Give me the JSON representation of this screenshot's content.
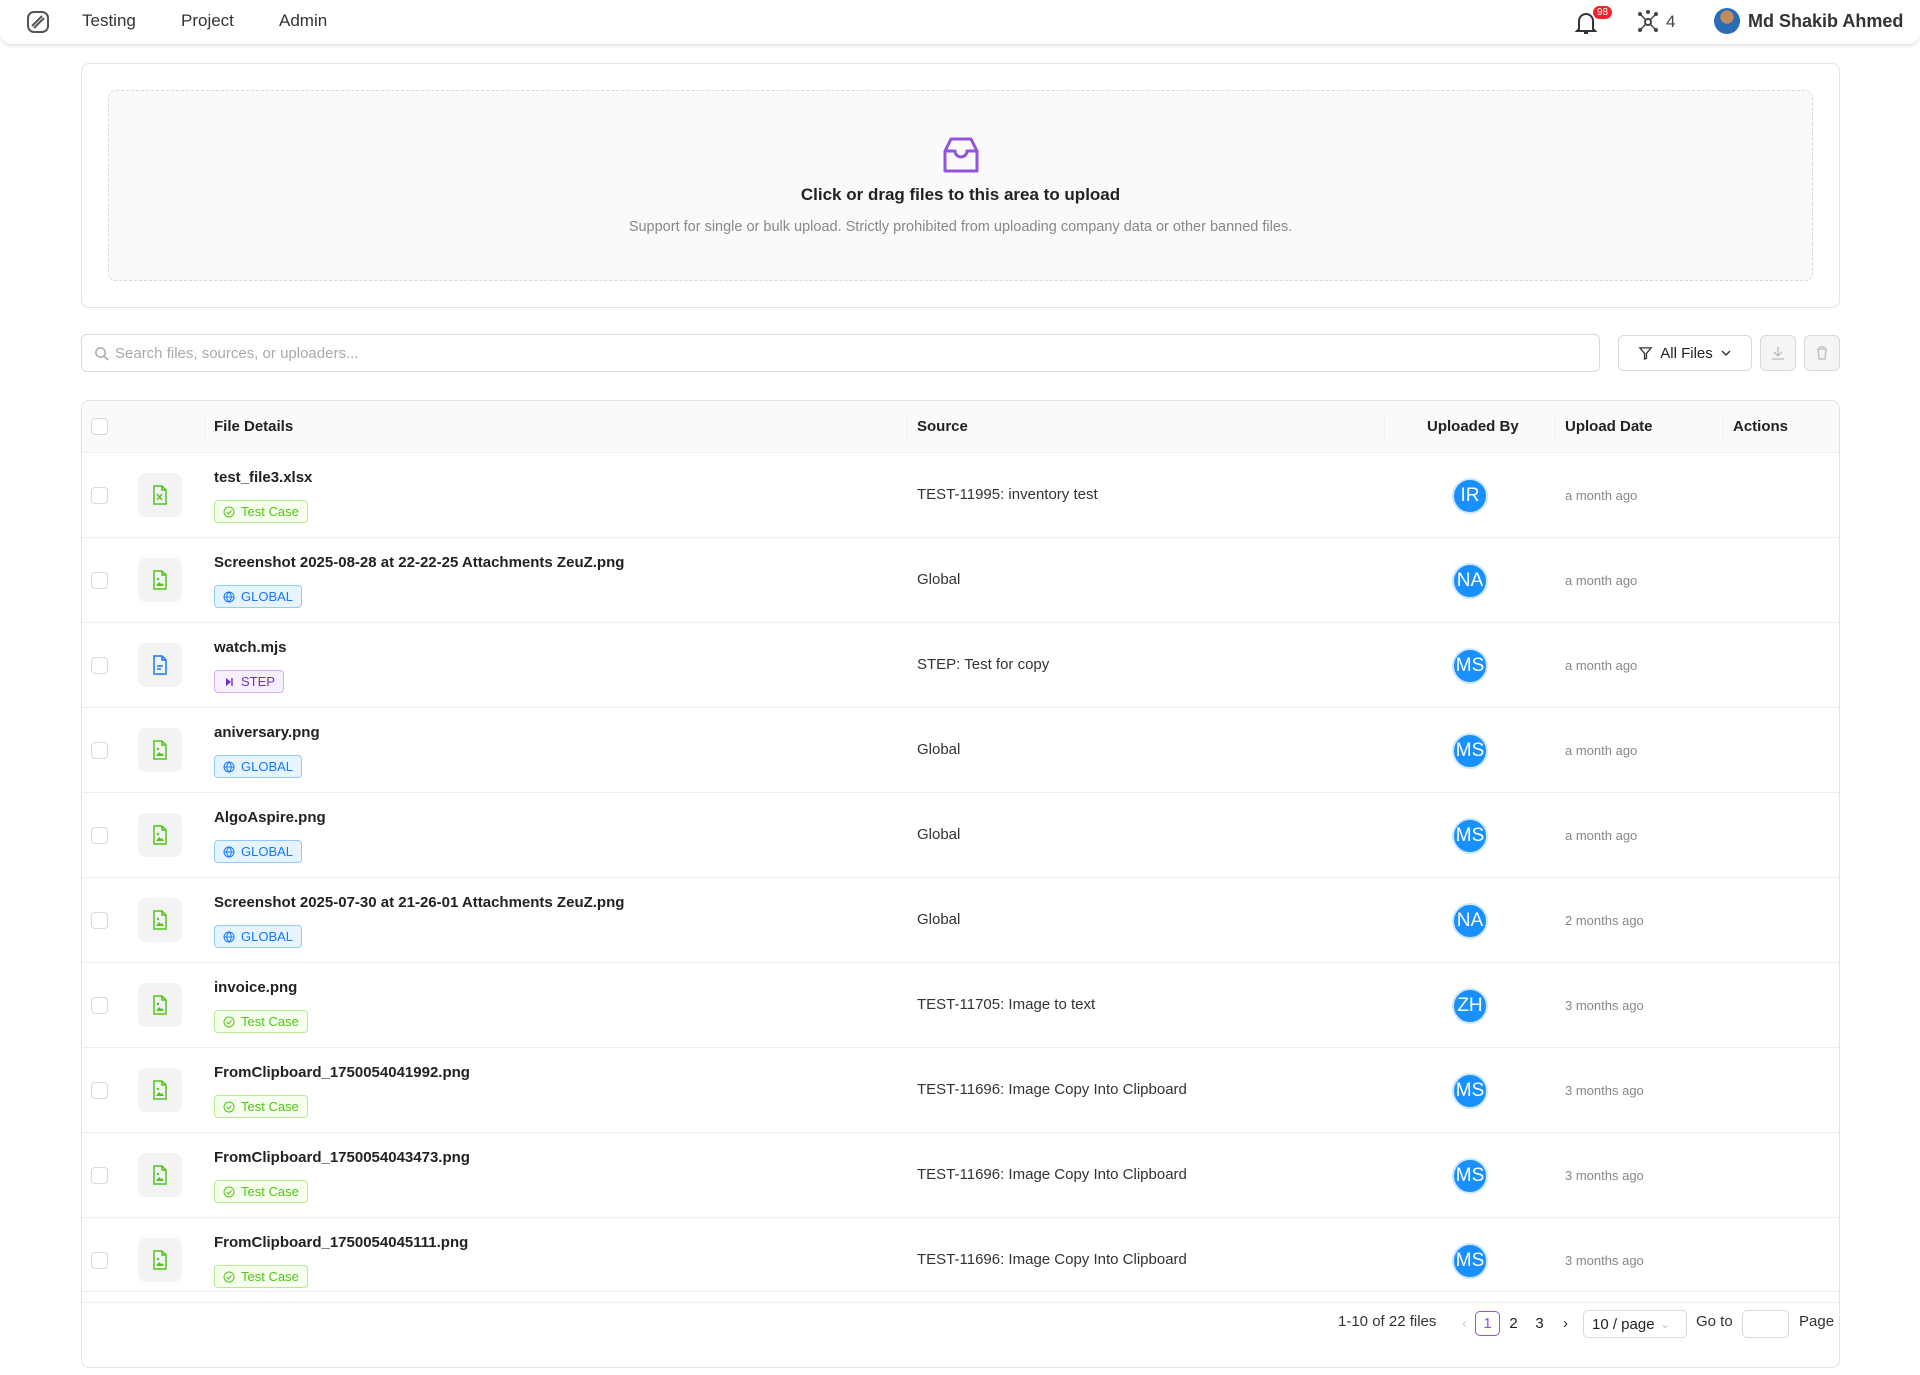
{
  "nav": {
    "items": [
      "Testing",
      "Project",
      "Admin"
    ],
    "notifications": "98",
    "nodes_count": "4",
    "user_name": "Md Shakib Ahmed"
  },
  "upload": {
    "title": "Click or drag files to this area to upload",
    "hint": "Support for single or bulk upload. Strictly prohibited from uploading company data or other banned files.",
    "accent": "#9254de"
  },
  "toolbar": {
    "search_placeholder": "Search files, sources, or uploaders...",
    "search_value": "",
    "filter_label": "All Files"
  },
  "table": {
    "headers": {
      "file_details": "File Details",
      "source": "Source",
      "uploaded_by": "Uploaded By",
      "upload_date": "Upload Date",
      "actions": "Actions"
    },
    "rows": [
      {
        "name": "test_file3.xlsx",
        "icon": "excel-file-icon",
        "tag": "Test Case",
        "tag_type": "tc",
        "source": "TEST-11995: inventory test",
        "uploader": "IR",
        "date": "a month ago"
      },
      {
        "name": "Screenshot 2025-08-28 at 22-22-25 Attachments ZeuZ.png",
        "icon": "image-file-icon",
        "tag": "GLOBAL",
        "tag_type": "gl",
        "source": "Global",
        "uploader": "NA",
        "date": "a month ago"
      },
      {
        "name": "watch.mjs",
        "icon": "text-file-icon",
        "tag": "STEP",
        "tag_type": "st",
        "source": "STEP: Test for copy",
        "uploader": "MS",
        "date": "a month ago"
      },
      {
        "name": "aniversary.png",
        "icon": "image-file-icon",
        "tag": "GLOBAL",
        "tag_type": "gl",
        "source": "Global",
        "uploader": "MS",
        "date": "a month ago"
      },
      {
        "name": "AlgoAspire.png",
        "icon": "image-file-icon",
        "tag": "GLOBAL",
        "tag_type": "gl",
        "source": "Global",
        "uploader": "MS",
        "date": "a month ago"
      },
      {
        "name": "Screenshot 2025-07-30 at 21-26-01 Attachments ZeuZ.png",
        "icon": "image-file-icon",
        "tag": "GLOBAL",
        "tag_type": "gl",
        "source": "Global",
        "uploader": "NA",
        "date": "2 months ago"
      },
      {
        "name": "invoice.png",
        "icon": "image-file-icon",
        "tag": "Test Case",
        "tag_type": "tc",
        "source": "TEST-11705: Image to text",
        "uploader": "ZH",
        "date": "3 months ago"
      },
      {
        "name": "FromClipboard_1750054041992.png",
        "icon": "image-file-icon",
        "tag": "Test Case",
        "tag_type": "tc",
        "source": "TEST-11696: Image Copy Into Clipboard",
        "uploader": "MS",
        "date": "3 months ago"
      },
      {
        "name": "FromClipboard_1750054043473.png",
        "icon": "image-file-icon",
        "tag": "Test Case",
        "tag_type": "tc",
        "source": "TEST-11696: Image Copy Into Clipboard",
        "uploader": "MS",
        "date": "3 months ago"
      },
      {
        "name": "FromClipboard_1750054045111.png",
        "icon": "image-file-icon",
        "tag": "Test Case",
        "tag_type": "tc",
        "source": "TEST-11696: Image Copy Into Clipboard",
        "uploader": "MS",
        "date": "3 months ago"
      }
    ]
  },
  "pagination": {
    "summary": "1-10 of 22 files",
    "pages": [
      "1",
      "2",
      "3"
    ],
    "current": "1",
    "page_size": "10 / page",
    "goto_label": "Go to",
    "page_label": "Page"
  }
}
